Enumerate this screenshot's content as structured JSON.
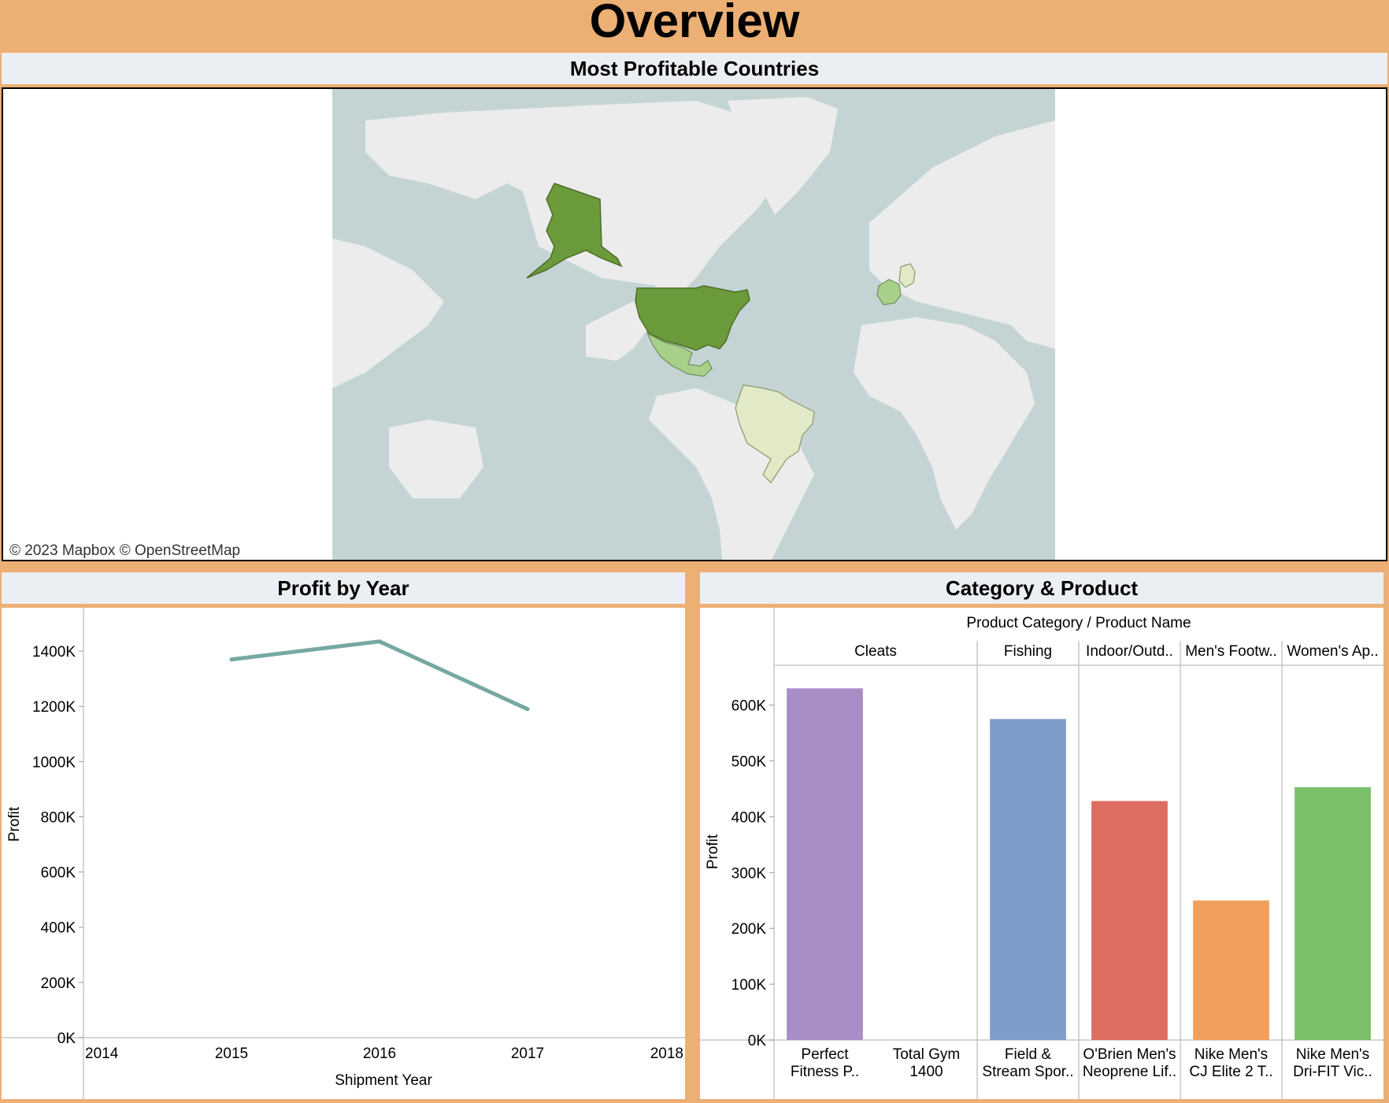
{
  "dashboard_title": "Overview",
  "map_panel": {
    "title": "Most Profitable Countries",
    "attribution": "© 2023 Mapbox  © OpenStreetMap",
    "colors": {
      "water": "#c4d4d4",
      "land": "#ececec",
      "high": "#6b9a3a",
      "mid": "#a8d08a",
      "low": "#e1e9c6"
    },
    "highlighted_countries": [
      {
        "name": "United States",
        "shade": "high"
      },
      {
        "name": "Mexico",
        "shade": "mid"
      },
      {
        "name": "France",
        "shade": "mid"
      },
      {
        "name": "Germany",
        "shade": "low"
      },
      {
        "name": "Brazil",
        "shade": "low"
      }
    ]
  },
  "profit_panel": {
    "title": "Profit by Year"
  },
  "category_panel": {
    "title": "Category & Product"
  },
  "chart_data": [
    {
      "type": "line",
      "xlabel": "Shipment Year",
      "ylabel": "Profit",
      "x_ticks": [
        "2014",
        "2015",
        "2016",
        "2017",
        "2018"
      ],
      "y_ticks": [
        "0K",
        "200K",
        "400K",
        "600K",
        "800K",
        "1000K",
        "1200K",
        "1400K"
      ],
      "xlim": [
        2014,
        2018
      ],
      "ylim": [
        0,
        1500000
      ],
      "color": "#76a8a4",
      "series": [
        {
          "x": [
            2015,
            2016,
            2017
          ],
          "y": [
            1370000,
            1435000,
            1190000
          ]
        }
      ]
    },
    {
      "type": "bar",
      "header": "Product Category / Product Name",
      "ylabel": "Profit",
      "y_ticks": [
        "0K",
        "100K",
        "200K",
        "300K",
        "400K",
        "500K",
        "600K"
      ],
      "ylim": [
        0,
        660000
      ],
      "groups": [
        {
          "category": "Cleats",
          "products": [
            {
              "name_lines": [
                "Perfect",
                "Fitness P.."
              ],
              "value": 630000,
              "color": "#a88ec6"
            },
            {
              "name_lines": [
                "Total Gym",
                "1400"
              ],
              "value": 0,
              "color": "#ffffff"
            }
          ]
        },
        {
          "category": "Fishing",
          "products": [
            {
              "name_lines": [
                "Field &",
                "Stream Spor.."
              ],
              "value": 575000,
              "color": "#7d9dc9"
            }
          ]
        },
        {
          "category": "Indoor/Outd..",
          "products": [
            {
              "name_lines": [
                "O'Brien Men's",
                "Neoprene Lif.."
              ],
              "value": 428000,
              "color": "#de6d61"
            }
          ]
        },
        {
          "category": "Men's Footw..",
          "products": [
            {
              "name_lines": [
                "Nike Men's",
                "CJ Elite 2 T.."
              ],
              "value": 250000,
              "color": "#f0a05c"
            }
          ]
        },
        {
          "category": "Women's Ap..",
          "products": [
            {
              "name_lines": [
                "Nike Men's",
                "Dri-FIT Vic.."
              ],
              "value": 453000,
              "color": "#7cbf6b"
            }
          ]
        }
      ]
    }
  ]
}
